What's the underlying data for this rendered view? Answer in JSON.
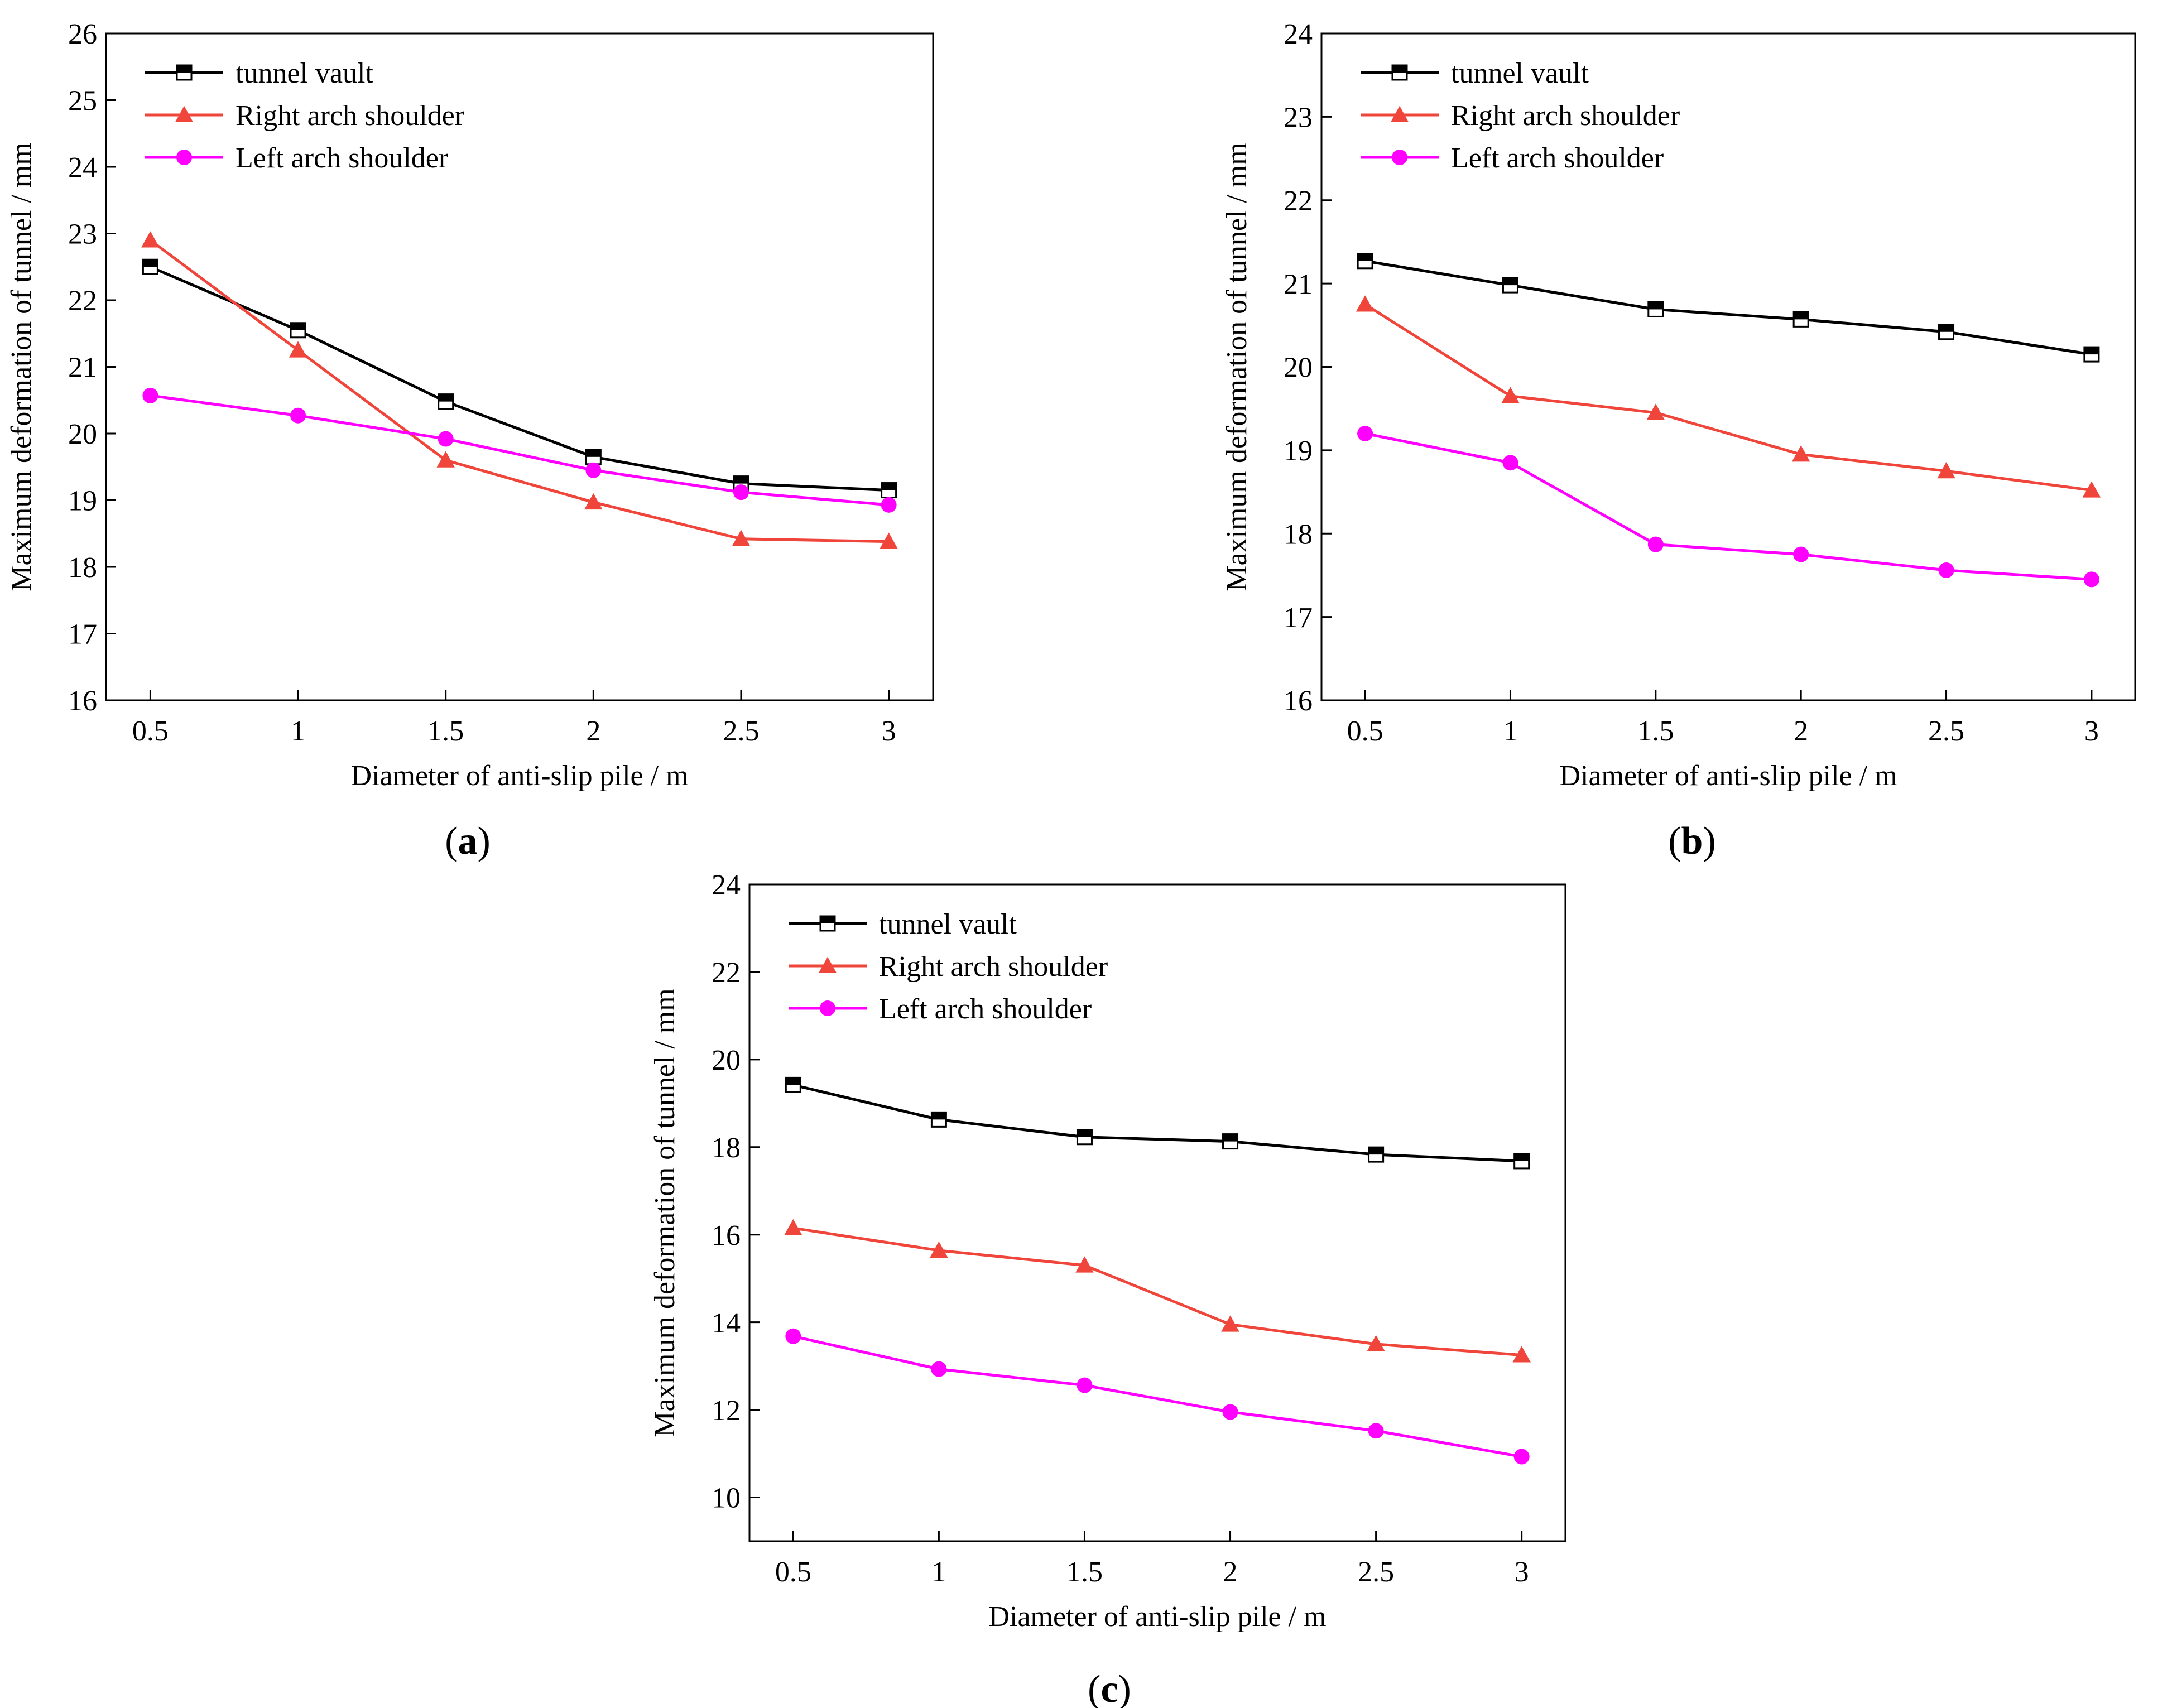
{
  "colors": {
    "tunnel_vault": "#000000",
    "right_arch_shoulder": "#f0453a",
    "left_arch_shoulder": "#ff00ff"
  },
  "chart_data": [
    {
      "panel_label": "a",
      "type": "line",
      "xlabel": "Diameter of anti-slip pile / m",
      "ylabel": "Maximum deformation of tunnel / mm",
      "categories": [
        "0.5",
        "1",
        "1.5",
        "2",
        "2.5",
        "3"
      ],
      "x": [
        0.5,
        1,
        1.5,
        2,
        2.5,
        3
      ],
      "ylim": [
        16,
        26
      ],
      "yticks": [
        16,
        17,
        18,
        19,
        20,
        21,
        22,
        23,
        24,
        25,
        26
      ],
      "legend_position": "top-left",
      "series": [
        {
          "name": "tunnel vault",
          "key": "tunnel_vault",
          "marker": "square",
          "values": [
            22.5,
            21.55,
            20.48,
            19.65,
            19.25,
            19.15
          ]
        },
        {
          "name": "Right arch shoulder",
          "key": "right_arch_shoulder",
          "marker": "triangle",
          "values": [
            22.9,
            21.25,
            19.6,
            18.97,
            18.42,
            18.38
          ]
        },
        {
          "name": "Left arch shoulder",
          "key": "left_arch_shoulder",
          "marker": "circle",
          "values": [
            20.57,
            20.27,
            19.92,
            19.45,
            19.12,
            18.93
          ]
        }
      ]
    },
    {
      "panel_label": "b",
      "type": "line",
      "xlabel": "Diameter of anti-slip pile / m",
      "ylabel": "Maximum deformation of tunnel / mm",
      "categories": [
        "0.5",
        "1",
        "1.5",
        "2",
        "2.5",
        "3"
      ],
      "x": [
        0.5,
        1,
        1.5,
        2,
        2.5,
        3
      ],
      "ylim": [
        16,
        24
      ],
      "yticks": [
        16,
        17,
        18,
        19,
        20,
        21,
        22,
        23,
        24
      ],
      "legend_position": "top-left",
      "series": [
        {
          "name": "tunnel vault",
          "key": "tunnel_vault",
          "marker": "square",
          "values": [
            21.27,
            20.98,
            20.69,
            20.57,
            20.42,
            20.15
          ]
        },
        {
          "name": "Right arch shoulder",
          "key": "right_arch_shoulder",
          "marker": "triangle",
          "values": [
            20.75,
            19.65,
            19.45,
            18.95,
            18.75,
            18.52
          ]
        },
        {
          "name": "Left arch shoulder",
          "key": "left_arch_shoulder",
          "marker": "circle",
          "values": [
            19.2,
            18.85,
            17.87,
            17.75,
            17.56,
            17.45
          ]
        }
      ]
    },
    {
      "panel_label": "c",
      "type": "line",
      "xlabel": "Diameter of anti-slip pile / m",
      "ylabel": "Maximum deformation of tunnel / mm",
      "categories": [
        "0.5",
        "1",
        "1.5",
        "2",
        "2.5",
        "3"
      ],
      "x": [
        0.5,
        1,
        1.5,
        2,
        2.5,
        3
      ],
      "ylim": [
        9,
        24
      ],
      "yticks": [
        10,
        12,
        14,
        16,
        18,
        20,
        22,
        24
      ],
      "legend_position": "top-left",
      "series": [
        {
          "name": "tunnel vault",
          "key": "tunnel_vault",
          "marker": "square",
          "values": [
            19.42,
            18.63,
            18.23,
            18.13,
            17.83,
            17.68
          ]
        },
        {
          "name": "Right arch shoulder",
          "key": "right_arch_shoulder",
          "marker": "triangle",
          "values": [
            16.15,
            15.64,
            15.3,
            13.95,
            13.5,
            13.25
          ]
        },
        {
          "name": "Left arch shoulder",
          "key": "left_arch_shoulder",
          "marker": "circle",
          "values": [
            13.68,
            12.93,
            12.56,
            11.95,
            11.52,
            10.93
          ]
        }
      ]
    }
  ]
}
